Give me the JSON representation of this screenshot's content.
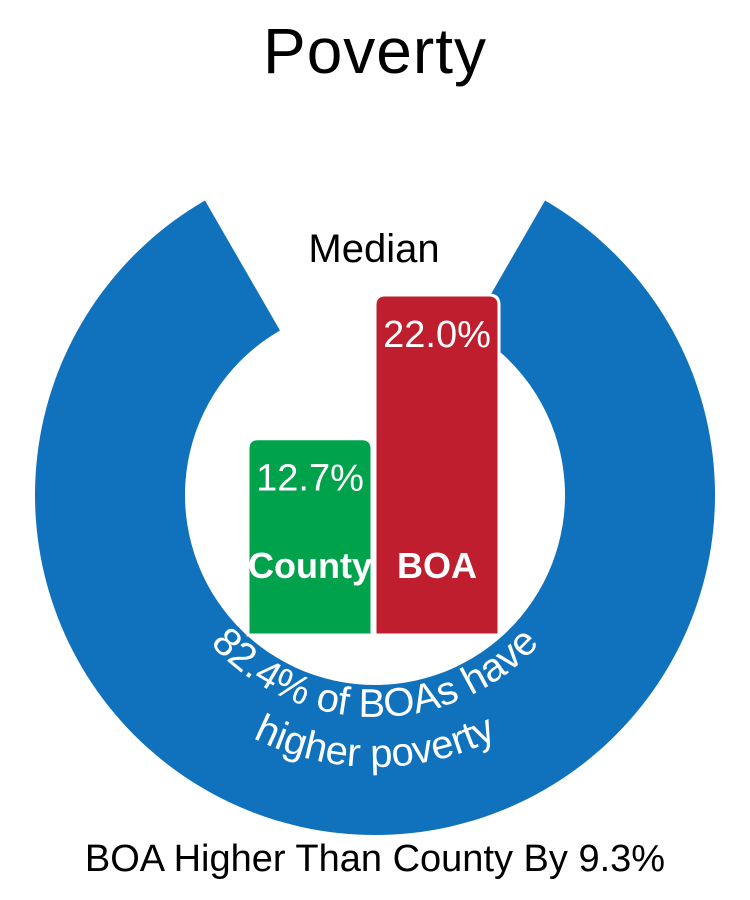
{
  "title": "Poverty",
  "footer": "BOA Higher Than County By 9.3%",
  "colors": {
    "ring": "#1072bd",
    "county": "#00a24b",
    "boa": "#be1e2d",
    "text_dark": "#000000",
    "text_light": "#ffffff"
  },
  "chart_data": {
    "type": "bar",
    "title": "Median",
    "categories": [
      "County",
      "BOA"
    ],
    "values": [
      12.7,
      22.0
    ],
    "value_labels": [
      "12.7%",
      "22.0%"
    ],
    "ring_value": 82.4,
    "ring_label_lines": [
      "82.4% of BOAs have",
      "higher poverty"
    ]
  }
}
